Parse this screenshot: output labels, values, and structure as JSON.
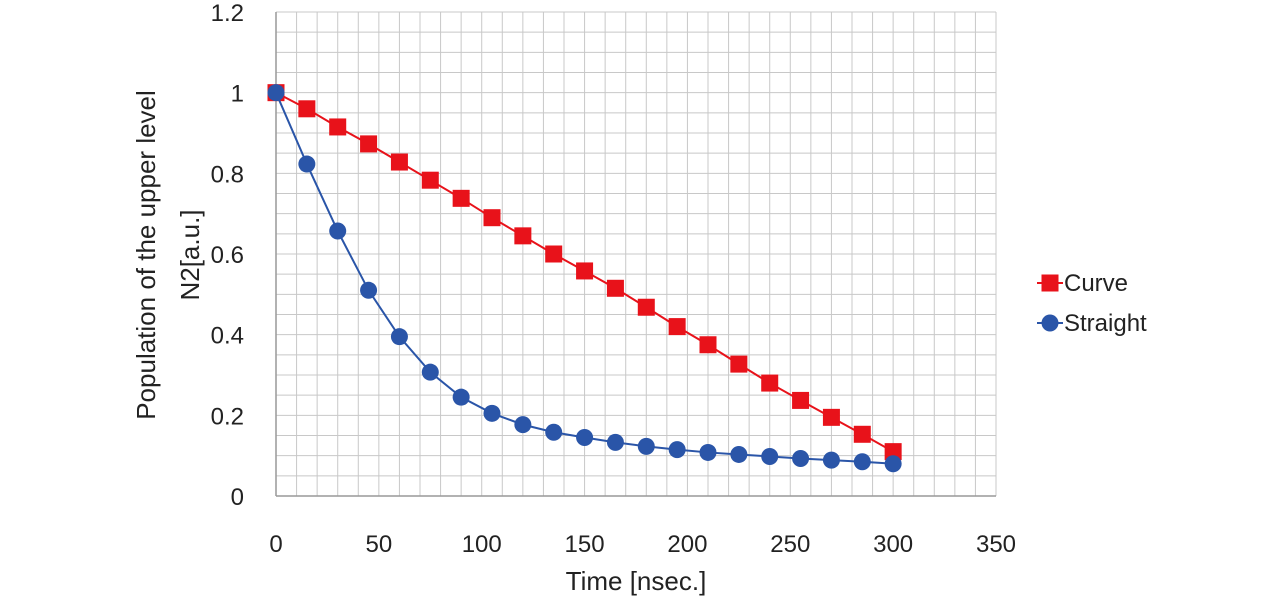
{
  "chart_data": {
    "type": "line",
    "xlabel": "Time [nsec.]",
    "ylabel_lines": [
      "Population of the upper level",
      "N2[a.u.]"
    ],
    "xlim": [
      0,
      350
    ],
    "ylim": [
      0,
      1.2
    ],
    "xticks": [
      "0",
      "50",
      "100",
      "150",
      "200",
      "250",
      "300",
      "350"
    ],
    "yticks": [
      "0",
      "0.2",
      "0.4",
      "0.6",
      "0.8",
      "1",
      "1.2"
    ],
    "grid": true,
    "legend_position": "right",
    "x": [
      0,
      15,
      30,
      45,
      60,
      75,
      90,
      105,
      120,
      135,
      150,
      165,
      180,
      195,
      210,
      225,
      240,
      255,
      270,
      285,
      300
    ],
    "series": [
      {
        "name": "Curve",
        "color": "#e8121a",
        "marker": "square",
        "values": [
          1.0,
          0.96,
          0.915,
          0.873,
          0.828,
          0.783,
          0.738,
          0.69,
          0.645,
          0.6,
          0.558,
          0.515,
          0.468,
          0.42,
          0.375,
          0.327,
          0.28,
          0.237,
          0.195,
          0.153,
          0.11
        ]
      },
      {
        "name": "Straight",
        "color": "#2a55a8",
        "marker": "circle",
        "values": [
          1.0,
          0.823,
          0.657,
          0.51,
          0.395,
          0.307,
          0.245,
          0.205,
          0.177,
          0.158,
          0.145,
          0.133,
          0.123,
          0.115,
          0.108,
          0.103,
          0.098,
          0.093,
          0.089,
          0.085,
          0.08
        ]
      }
    ]
  }
}
